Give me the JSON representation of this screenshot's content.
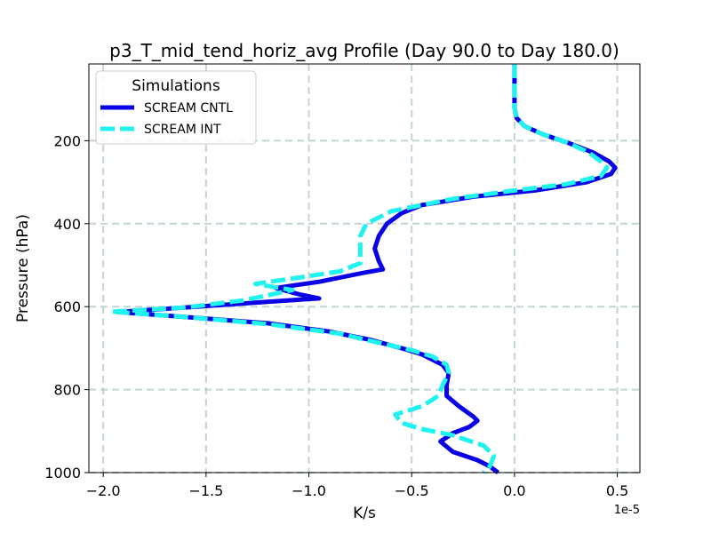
{
  "chart_data": {
    "type": "line",
    "title": "p3_T_mid_tend_horiz_avg Profile (Day 90.0 to Day 180.0)",
    "xlabel": "K/s",
    "ylabel": "Pressure (hPa)",
    "x_offset_label": "1e-5",
    "x_scale": 1e-05,
    "xlim": [
      -2.07,
      0.61
    ],
    "ylim": [
      1000,
      15
    ],
    "y_inverted": true,
    "x_ticks": [
      -2.0,
      -1.5,
      -1.0,
      -0.5,
      0.0,
      0.5
    ],
    "x_tick_labels": [
      "−2.0",
      "−1.5",
      "−1.0",
      "−0.5",
      "0.0",
      "0.5"
    ],
    "y_ticks": [
      200,
      400,
      600,
      800,
      1000
    ],
    "y_tick_labels": [
      "200",
      "400",
      "600",
      "800",
      "1000"
    ],
    "grid": true,
    "legend": {
      "title": "Simulations",
      "placement": "top-left"
    },
    "series": [
      {
        "name": "SCREAM CNTL",
        "color": "#0a00e6",
        "style": "solid",
        "points": [
          [
            0.0,
            15
          ],
          [
            0.0,
            120
          ],
          [
            0.01,
            145
          ],
          [
            0.05,
            165
          ],
          [
            0.14,
            185
          ],
          [
            0.26,
            205
          ],
          [
            0.38,
            228
          ],
          [
            0.46,
            250
          ],
          [
            0.49,
            265
          ],
          [
            0.47,
            280
          ],
          [
            0.35,
            300
          ],
          [
            0.1,
            320
          ],
          [
            -0.2,
            335
          ],
          [
            -0.45,
            355
          ],
          [
            -0.55,
            375
          ],
          [
            -0.62,
            400
          ],
          [
            -0.66,
            430
          ],
          [
            -0.68,
            460
          ],
          [
            -0.66,
            490
          ],
          [
            -0.64,
            510
          ],
          [
            -0.75,
            520
          ],
          [
            -0.95,
            540
          ],
          [
            -1.16,
            555
          ],
          [
            -1.05,
            570
          ],
          [
            -0.95,
            580
          ],
          [
            -1.25,
            590
          ],
          [
            -1.6,
            602
          ],
          [
            -1.93,
            613
          ],
          [
            -1.6,
            625
          ],
          [
            -1.2,
            640
          ],
          [
            -0.9,
            660
          ],
          [
            -0.7,
            680
          ],
          [
            -0.55,
            700
          ],
          [
            -0.45,
            715
          ],
          [
            -0.35,
            740
          ],
          [
            -0.32,
            760
          ],
          [
            -0.33,
            790
          ],
          [
            -0.33,
            815
          ],
          [
            -0.27,
            840
          ],
          [
            -0.2,
            865
          ],
          [
            -0.18,
            875
          ],
          [
            -0.22,
            890
          ],
          [
            -0.3,
            905
          ],
          [
            -0.36,
            925
          ],
          [
            -0.3,
            950
          ],
          [
            -0.18,
            970
          ],
          [
            -0.12,
            985
          ],
          [
            -0.08,
            1000
          ]
        ]
      },
      {
        "name": "SCREAM INT",
        "color": "#1ff2ef",
        "style": "dashed",
        "points": [
          [
            0.0,
            15
          ],
          [
            0.0,
            120
          ],
          [
            0.01,
            145
          ],
          [
            0.05,
            165
          ],
          [
            0.14,
            185
          ],
          [
            0.26,
            205
          ],
          [
            0.36,
            228
          ],
          [
            0.42,
            250
          ],
          [
            0.45,
            265
          ],
          [
            0.42,
            285
          ],
          [
            0.25,
            305
          ],
          [
            0.0,
            320
          ],
          [
            -0.3,
            340
          ],
          [
            -0.6,
            370
          ],
          [
            -0.72,
            400
          ],
          [
            -0.75,
            430
          ],
          [
            -0.75,
            460
          ],
          [
            -0.75,
            495
          ],
          [
            -0.85,
            515
          ],
          [
            -1.05,
            530
          ],
          [
            -1.26,
            545
          ],
          [
            -1.08,
            560
          ],
          [
            -1.32,
            585
          ],
          [
            -1.6,
            602
          ],
          [
            -1.96,
            612
          ],
          [
            -1.6,
            625
          ],
          [
            -1.2,
            642
          ],
          [
            -0.85,
            665
          ],
          [
            -0.65,
            688
          ],
          [
            -0.5,
            705
          ],
          [
            -0.4,
            720
          ],
          [
            -0.33,
            740
          ],
          [
            -0.32,
            760
          ],
          [
            -0.35,
            790
          ],
          [
            -0.37,
            815
          ],
          [
            -0.45,
            840
          ],
          [
            -0.58,
            860
          ],
          [
            -0.55,
            880
          ],
          [
            -0.45,
            895
          ],
          [
            -0.3,
            910
          ],
          [
            -0.15,
            935
          ],
          [
            -0.1,
            960
          ],
          [
            -0.12,
            985
          ],
          [
            -0.15,
            1000
          ]
        ]
      }
    ]
  }
}
